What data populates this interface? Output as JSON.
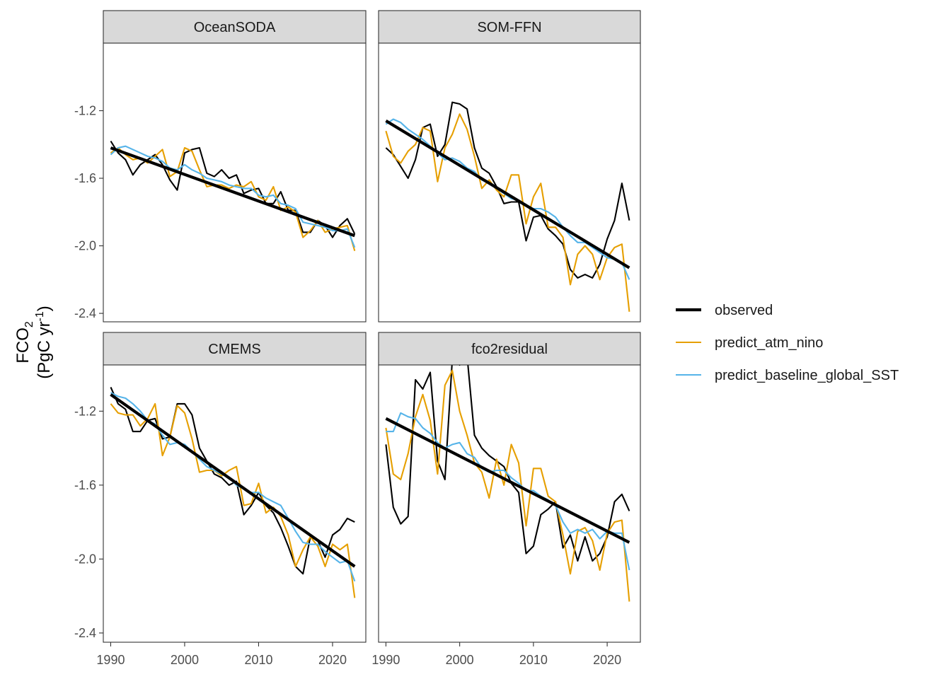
{
  "chart_data": {
    "type": "line",
    "ylabel": {
      "main": "FCO",
      "sub": "2",
      "unit_prefix": "(PgC yr",
      "unit_sup": "-1",
      "unit_suffix": ")"
    },
    "xlim": [
      1989,
      2024.5
    ],
    "x_ticks": [
      1990,
      2000,
      2010,
      2020
    ],
    "x_tick_labels": [
      "1990",
      "2000",
      "2010",
      "2020"
    ],
    "legend_position": "right",
    "colors": {
      "observed": "#000000",
      "predict_atm_nino": "#E69F00",
      "predict_baseline_global_SST": "#56B4E9"
    },
    "legend": [
      {
        "name": "observed",
        "color": "#000000"
      },
      {
        "name": "predict_atm_nino",
        "color": "#E69F00"
      },
      {
        "name": "predict_baseline_global_SST",
        "color": "#56B4E9"
      }
    ],
    "rows": [
      {
        "ylim": [
          -2.45,
          -0.8
        ],
        "y_ticks": [
          -1.2,
          -1.6,
          -2.0,
          -2.4
        ],
        "y_tick_labels": [
          "-1.2",
          "-1.6",
          "-2.0",
          "-2.4"
        ]
      },
      {
        "ylim": [
          -2.45,
          -0.95
        ],
        "y_ticks": [
          -1.2,
          -1.6,
          -2.0,
          -2.4
        ],
        "y_tick_labels": [
          "-1.2",
          "-1.6",
          "-2.0",
          "-2.4"
        ]
      }
    ],
    "x": [
      1990,
      1991,
      1992,
      1993,
      1994,
      1995,
      1996,
      1997,
      1998,
      1999,
      2000,
      2001,
      2002,
      2003,
      2004,
      2005,
      2006,
      2007,
      2008,
      2009,
      2010,
      2011,
      2012,
      2013,
      2014,
      2015,
      2016,
      2017,
      2018,
      2019,
      2020,
      2021,
      2022,
      2023
    ],
    "panels": [
      {
        "title": "OceanSODA",
        "trend": [
          [
            1990,
            -1.42
          ],
          [
            2023,
            -1.94
          ]
        ],
        "series": [
          {
            "name": "observed",
            "values": [
              -1.38,
              -1.45,
              -1.49,
              -1.58,
              -1.52,
              -1.49,
              -1.46,
              -1.52,
              -1.61,
              -1.67,
              -1.45,
              -1.43,
              -1.42,
              -1.57,
              -1.59,
              -1.55,
              -1.6,
              -1.58,
              -1.69,
              -1.67,
              -1.66,
              -1.75,
              -1.75,
              -1.68,
              -1.79,
              -1.79,
              -1.92,
              -1.92,
              -1.85,
              -1.88,
              -1.95,
              -1.88,
              -1.84,
              -1.93
            ]
          },
          {
            "name": "predict_atm_nino",
            "values": [
              -1.45,
              -1.42,
              -1.46,
              -1.49,
              -1.48,
              -1.51,
              -1.47,
              -1.43,
              -1.59,
              -1.56,
              -1.42,
              -1.44,
              -1.55,
              -1.65,
              -1.64,
              -1.64,
              -1.66,
              -1.64,
              -1.65,
              -1.62,
              -1.71,
              -1.73,
              -1.65,
              -1.79,
              -1.77,
              -1.8,
              -1.95,
              -1.91,
              -1.85,
              -1.92,
              -1.9,
              -1.89,
              -1.88,
              -2.03
            ]
          },
          {
            "name": "predict_baseline_global_SST",
            "values": [
              -1.46,
              -1.42,
              -1.41,
              -1.43,
              -1.45,
              -1.47,
              -1.48,
              -1.5,
              -1.54,
              -1.55,
              -1.52,
              -1.55,
              -1.57,
              -1.6,
              -1.61,
              -1.62,
              -1.64,
              -1.65,
              -1.66,
              -1.66,
              -1.7,
              -1.71,
              -1.7,
              -1.75,
              -1.76,
              -1.78,
              -1.86,
              -1.87,
              -1.88,
              -1.89,
              -1.91,
              -1.91,
              -1.9,
              -2.01
            ]
          }
        ]
      },
      {
        "title": "SOM-FFN",
        "trend": [
          [
            1990,
            -1.26
          ],
          [
            2023,
            -2.13
          ]
        ],
        "series": [
          {
            "name": "observed",
            "values": [
              -1.42,
              -1.46,
              -1.53,
              -1.6,
              -1.49,
              -1.3,
              -1.28,
              -1.47,
              -1.4,
              -1.15,
              -1.16,
              -1.19,
              -1.42,
              -1.54,
              -1.57,
              -1.65,
              -1.75,
              -1.74,
              -1.74,
              -1.97,
              -1.83,
              -1.82,
              -1.9,
              -1.94,
              -1.99,
              -2.14,
              -2.19,
              -2.17,
              -2.19,
              -2.11,
              -1.96,
              -1.85,
              -1.63,
              -1.85
            ]
          },
          {
            "name": "predict_atm_nino",
            "values": [
              -1.32,
              -1.47,
              -1.51,
              -1.44,
              -1.4,
              -1.3,
              -1.32,
              -1.62,
              -1.42,
              -1.34,
              -1.22,
              -1.31,
              -1.47,
              -1.66,
              -1.61,
              -1.67,
              -1.71,
              -1.58,
              -1.58,
              -1.87,
              -1.71,
              -1.63,
              -1.89,
              -1.89,
              -1.95,
              -2.23,
              -2.05,
              -2.0,
              -2.05,
              -2.2,
              -2.07,
              -2.01,
              -1.99,
              -2.39
            ]
          },
          {
            "name": "predict_baseline_global_SST",
            "values": [
              -1.28,
              -1.25,
              -1.27,
              -1.31,
              -1.34,
              -1.37,
              -1.41,
              -1.45,
              -1.49,
              -1.48,
              -1.5,
              -1.54,
              -1.56,
              -1.61,
              -1.63,
              -1.66,
              -1.69,
              -1.72,
              -1.73,
              -1.76,
              -1.78,
              -1.78,
              -1.8,
              -1.83,
              -1.89,
              -1.94,
              -1.98,
              -1.98,
              -2.01,
              -2.04,
              -2.07,
              -2.08,
              -2.1,
              -2.2
            ]
          }
        ]
      },
      {
        "title": "CMEMS",
        "trend": [
          [
            1990,
            -1.11
          ],
          [
            2023,
            -2.04
          ]
        ],
        "series": [
          {
            "name": "observed",
            "values": [
              -1.07,
              -1.16,
              -1.19,
              -1.31,
              -1.31,
              -1.25,
              -1.24,
              -1.35,
              -1.34,
              -1.16,
              -1.16,
              -1.22,
              -1.4,
              -1.47,
              -1.54,
              -1.56,
              -1.6,
              -1.58,
              -1.76,
              -1.71,
              -1.64,
              -1.71,
              -1.75,
              -1.83,
              -1.93,
              -2.04,
              -2.08,
              -1.88,
              -1.9,
              -1.99,
              -1.87,
              -1.84,
              -1.78,
              -1.8
            ]
          },
          {
            "name": "predict_atm_nino",
            "values": [
              -1.16,
              -1.21,
              -1.22,
              -1.22,
              -1.28,
              -1.24,
              -1.16,
              -1.44,
              -1.34,
              -1.17,
              -1.21,
              -1.35,
              -1.53,
              -1.52,
              -1.52,
              -1.55,
              -1.52,
              -1.5,
              -1.71,
              -1.7,
              -1.59,
              -1.75,
              -1.72,
              -1.77,
              -1.87,
              -2.04,
              -1.95,
              -1.88,
              -1.93,
              -2.04,
              -1.92,
              -1.95,
              -1.92,
              -2.21
            ]
          },
          {
            "name": "predict_baseline_global_SST",
            "values": [
              -1.1,
              -1.12,
              -1.13,
              -1.16,
              -1.2,
              -1.25,
              -1.27,
              -1.33,
              -1.38,
              -1.37,
              -1.38,
              -1.42,
              -1.46,
              -1.5,
              -1.52,
              -1.54,
              -1.56,
              -1.6,
              -1.62,
              -1.64,
              -1.64,
              -1.67,
              -1.69,
              -1.71,
              -1.78,
              -1.85,
              -1.91,
              -1.92,
              -1.92,
              -1.96,
              -1.99,
              -2.02,
              -2.01,
              -2.12
            ]
          }
        ]
      },
      {
        "title": "fco2residual",
        "trend": [
          [
            1990,
            -1.24
          ],
          [
            2023,
            -1.91
          ]
        ],
        "series": [
          {
            "name": "observed",
            "values": [
              -1.38,
              -1.72,
              -1.81,
              -1.77,
              -1.03,
              -1.08,
              -0.99,
              -1.47,
              -1.57,
              -0.92,
              -0.95,
              -0.9,
              -1.33,
              -1.4,
              -1.44,
              -1.47,
              -1.5,
              -1.59,
              -1.64,
              -1.97,
              -1.93,
              -1.76,
              -1.73,
              -1.69,
              -1.94,
              -1.87,
              -2.01,
              -1.88,
              -2.01,
              -1.97,
              -1.88,
              -1.69,
              -1.65,
              -1.74
            ]
          },
          {
            "name": "predict_atm_nino",
            "values": [
              -1.29,
              -1.54,
              -1.57,
              -1.43,
              -1.23,
              -1.11,
              -1.25,
              -1.54,
              -1.06,
              -0.98,
              -1.2,
              -1.33,
              -1.48,
              -1.53,
              -1.67,
              -1.46,
              -1.6,
              -1.38,
              -1.48,
              -1.82,
              -1.51,
              -1.51,
              -1.66,
              -1.69,
              -1.87,
              -2.08,
              -1.85,
              -1.83,
              -1.9,
              -2.06,
              -1.86,
              -1.8,
              -1.79,
              -2.23
            ]
          },
          {
            "name": "predict_baseline_global_SST",
            "values": [
              -1.31,
              -1.31,
              -1.21,
              -1.23,
              -1.24,
              -1.29,
              -1.32,
              -1.37,
              -1.4,
              -1.38,
              -1.37,
              -1.43,
              -1.45,
              -1.51,
              -1.53,
              -1.52,
              -1.52,
              -1.56,
              -1.59,
              -1.63,
              -1.63,
              -1.66,
              -1.68,
              -1.71,
              -1.8,
              -1.86,
              -1.84,
              -1.86,
              -1.84,
              -1.89,
              -1.85,
              -1.86,
              -1.86,
              -2.06
            ]
          }
        ]
      }
    ]
  }
}
